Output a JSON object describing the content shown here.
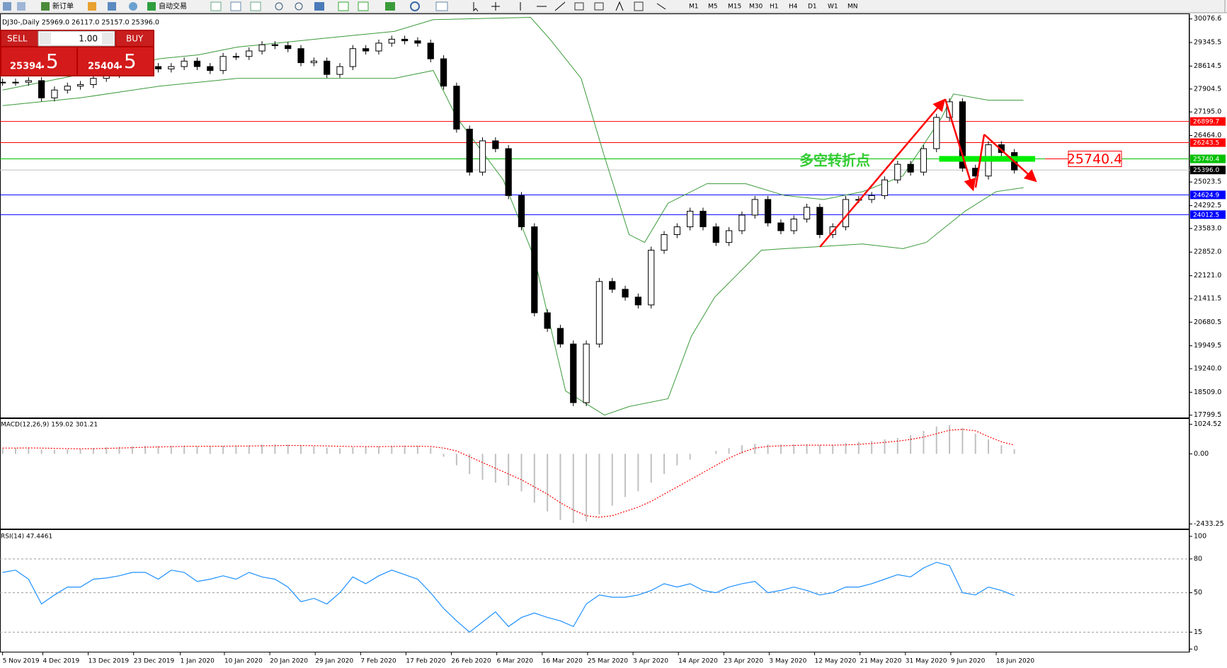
{
  "toolbar": {
    "new_order": "新订单",
    "auto_trading": "自动交易",
    "timeframes": [
      "M1",
      "M5",
      "M15",
      "M30",
      "H1",
      "H4",
      "D1",
      "W1",
      "MN"
    ]
  },
  "chart_header": "DJ30-,Daily  25969.0 26117.0 25157.0 25396.0",
  "trade_panel": {
    "sell": "SELL",
    "buy": "BUY",
    "volume": "1.00",
    "sell_price_main": "25394",
    "sell_price_frac": ".5",
    "buy_price_main": "25404",
    "buy_price_frac": ".5"
  },
  "chart_data": [
    {
      "type": "candlestick",
      "values": [
        28115,
        28115,
        28164,
        27630,
        27873,
        27994,
        28043,
        28236,
        28357,
        28478,
        28600,
        28600,
        28527,
        28600,
        28769,
        28600,
        28478,
        28914,
        28914,
        29083,
        29277,
        29250,
        29156,
        28720,
        28769,
        28357,
        28600,
        29156,
        29083,
        29326,
        29447,
        29398,
        29326,
        28841,
        27994,
        26662,
        25330,
        26299,
        26057,
        24603,
        23635,
        20972,
        20488,
        20004,
        18187,
        20004,
        21941,
        21699,
        21457,
        21215,
        22910,
        23394,
        23635,
        24119,
        23635,
        23151,
        23515,
        23999,
        24482,
        23756,
        23515,
        23877,
        24240,
        23394,
        23635,
        24482,
        24482,
        24603,
        25088,
        25572,
        25330,
        26057,
        27025,
        27509,
        25451,
        25209,
        26178,
        25936,
        25396
      ],
      "xlim": [
        -0.2,
        91.5
      ],
      "xticks": [
        {
          "value": 0,
          "label": "5 Nov 2019"
        },
        {
          "value": 3.1,
          "label": "4 Dec 2019"
        },
        {
          "value": 6.6,
          "label": "13 Dec 2019"
        },
        {
          "value": 10.1,
          "label": "23 Dec 2019"
        },
        {
          "value": 13.7,
          "label": "1 Jan 2020"
        },
        {
          "value": 17.1,
          "label": "10 Jan 2020"
        },
        {
          "value": 20.6,
          "label": "20 Jan 2020"
        },
        {
          "value": 24.1,
          "label": "29 Jan 2020"
        },
        {
          "value": 27.6,
          "label": "7 Feb 2020"
        },
        {
          "value": 31.1,
          "label": "17 Feb 2020"
        },
        {
          "value": 34.6,
          "label": "26 Feb 2020"
        },
        {
          "value": 38.1,
          "label": "6 Mar 2020"
        },
        {
          "value": 41.6,
          "label": "16 Mar 2020"
        },
        {
          "value": 45.1,
          "label": "25 Mar 2020"
        },
        {
          "value": 48.6,
          "label": "3 Apr 2020"
        },
        {
          "value": 52.1,
          "label": "14 Apr 2020"
        },
        {
          "value": 55.6,
          "label": "23 Apr 2020"
        },
        {
          "value": 59.1,
          "label": "3 May 2020"
        },
        {
          "value": 62.6,
          "label": "12 May 2020"
        },
        {
          "value": 66.1,
          "label": "21 May 2020"
        },
        {
          "value": 69.6,
          "label": "31 May 2020"
        },
        {
          "value": 73.1,
          "label": "9 Jun 2020"
        },
        {
          "value": 76.6,
          "label": "18 Jun 2020"
        }
      ],
      "ylim": [
        17727,
        30246
      ],
      "yticks": [
        30076.6,
        29345.5,
        28614.5,
        27904.5,
        {
          "value": 27195,
          "label": "27195.0"
        },
        {
          "value": 26464,
          "label": "26464.0"
        },
        25023.5,
        24292.5,
        {
          "value": 23583,
          "label": "23583.0"
        },
        {
          "value": 22852,
          "label": "22852.0"
        },
        {
          "value": 22121,
          "label": "22121.0"
        },
        21411.5,
        20680.5,
        19949.5,
        {
          "value": 19240,
          "label": "19240.0"
        },
        {
          "value": 18509,
          "label": "18509.0"
        },
        17799.5
      ],
      "levels": [
        {
          "value": 26899.7,
          "color": "#ff0000"
        },
        {
          "value": 26243.5,
          "color": "#ff0000"
        },
        {
          "value": 25740.4,
          "color": "#00c000"
        },
        {
          "value": 25396,
          "label": "25396.0",
          "color": "#000000"
        },
        {
          "value": 24624.9,
          "color": "#0000ff"
        },
        {
          "value": 24012.5,
          "color": "#0000ff"
        }
      ],
      "bands": [
        {
          "color": "#3a9a3a",
          "x": [
            0,
            3,
            6,
            9,
            12.1,
            15.1,
            18.1,
            21.1,
            24.1,
            27.1,
            30.2,
            33.2,
            40.7,
            42.2,
            44.6,
            46.4,
            48.3,
            49.5,
            51.3,
            54.3,
            57.3,
            60.3,
            63.3,
            66.3,
            69.4,
            72.4,
            73.3,
            76,
            78.7
          ],
          "values": [
            27873,
            28115,
            28357,
            28599,
            28842,
            28963,
            29205,
            29326,
            29447,
            29568,
            29689,
            30052,
            30125,
            29447,
            28236,
            25815,
            23394,
            23151,
            24365,
            24970,
            24970,
            24605,
            24483,
            24724,
            25210,
            27026,
            27752,
            27558,
            27558
          ]
        },
        {
          "color": "#3a9a3a",
          "x": [
            0,
            6,
            12.1,
            18.1,
            24.1,
            30.2,
            33.2,
            35,
            38.6,
            41,
            43.4,
            46.4,
            48.3,
            51.3,
            53.1,
            54.9,
            56.7,
            58.5,
            60.3,
            63.3,
            66.3,
            69.4,
            71.2,
            74.2,
            76.6,
            78.7
          ],
          "values": [
            27389,
            27631,
            27994,
            28236,
            28236,
            28236,
            28478,
            27026,
            25089,
            22668,
            18551,
            17801,
            18067,
            18309,
            20246,
            21456,
            22183,
            22909,
            22958,
            23030,
            23103,
            22958,
            23152,
            24120,
            24725,
            24846
          ]
        }
      ],
      "annotation": "多空转折点",
      "callout": 25740.4
    },
    {
      "type": "macd",
      "label": "MACD(12,26,9) 159.02 301.21",
      "values": [
        180,
        200,
        210,
        150,
        140,
        150,
        170,
        200,
        230,
        250,
        270,
        280,
        270,
        280,
        290,
        270,
        260,
        280,
        290,
        300,
        320,
        330,
        320,
        280,
        260,
        220,
        200,
        230,
        240,
        260,
        280,
        290,
        280,
        220,
        -100,
        -400,
        -700,
        -900,
        -1000,
        -1100,
        -1300,
        -1700,
        -2000,
        -2300,
        -2400,
        -2350,
        -2100,
        -1800,
        -1500,
        -1300,
        -1000,
        -700,
        -400,
        -200,
        0,
        100,
        200,
        300,
        350,
        330,
        320,
        330,
        340,
        300,
        320,
        380,
        420,
        450,
        500,
        550,
        650,
        800,
        950,
        1000,
        900,
        700,
        500,
        300,
        159.02
      ],
      "signal": [
        200,
        200,
        205,
        200,
        190,
        180,
        175,
        180,
        190,
        200,
        215,
        230,
        240,
        250,
        258,
        262,
        263,
        265,
        268,
        272,
        278,
        285,
        290,
        288,
        283,
        273,
        262,
        256,
        252,
        252,
        256,
        261,
        265,
        256,
        200,
        100,
        -100,
        -300,
        -500,
        -700,
        -900,
        -1150,
        -1400,
        -1700,
        -1950,
        -2150,
        -2200,
        -2150,
        -2000,
        -1850,
        -1650,
        -1400,
        -1150,
        -900,
        -650,
        -400,
        -150,
        50,
        200,
        260,
        280,
        290,
        300,
        300,
        300,
        310,
        330,
        360,
        400,
        440,
        500,
        580,
        700,
        820,
        850,
        800,
        600,
        420,
        301.21
      ],
      "color": "#c0c0c0",
      "signal_color": "#ff0000",
      "ylim": [
        -2596,
        1188
      ],
      "yticks": [
        1024.52,
        {
          "value": 0,
          "label": "0.00"
        },
        -2433.25
      ]
    },
    {
      "type": "rsi",
      "label": "RSI(14) 47.4461",
      "values": [
        68,
        70,
        62,
        40,
        48,
        55,
        55,
        62,
        63,
        65,
        68,
        68,
        62,
        70,
        68,
        60,
        62,
        65,
        62,
        68,
        64,
        62,
        55,
        42,
        45,
        40,
        50,
        64,
        58,
        65,
        70,
        66,
        62,
        50,
        36,
        25,
        15,
        24,
        33,
        20,
        28,
        32,
        28,
        25,
        20,
        40,
        48,
        46,
        46,
        48,
        52,
        58,
        55,
        58,
        52,
        50,
        55,
        58,
        60,
        50,
        52,
        55,
        52,
        48,
        50,
        55,
        55,
        58,
        62,
        66,
        64,
        72,
        77,
        74,
        50,
        48,
        55,
        52,
        47.4461
      ],
      "color": "#1e90ff",
      "ylim": [
        -3,
        105
      ],
      "yticks": [
        100,
        80,
        50,
        15,
        0
      ],
      "levels": [
        80,
        50,
        15
      ]
    }
  ]
}
